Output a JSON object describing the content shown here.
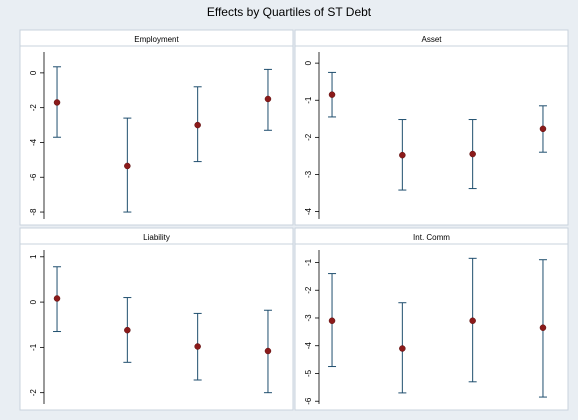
{
  "title": "Effects by Quartiles of ST Debt",
  "colors": {
    "outer_bg": "#e9eef3",
    "panel_bg": "#ffffff",
    "strip_bg": "#ffffff",
    "border": "#c9d3dc",
    "axis": "#000000",
    "errorbar": "#1f4e6e",
    "point": "#8b1a1a"
  },
  "chart_data": [
    {
      "type": "scatter",
      "title": "Employment",
      "x": [
        1,
        2,
        3,
        4
      ],
      "y": [
        -1.7,
        -5.35,
        -3.0,
        -1.5
      ],
      "ci_low": [
        -3.7,
        -8.0,
        -5.1,
        -3.3
      ],
      "ci_high": [
        0.35,
        -2.6,
        -0.8,
        0.2
      ],
      "yticks": [
        0,
        -2,
        -4,
        -6,
        -8
      ],
      "ytick_labels": [
        "0",
        "-2",
        "-4",
        "-6",
        "-8"
      ],
      "ylim": [
        -8.4,
        1.2
      ],
      "grid": false
    },
    {
      "type": "scatter",
      "title": "Asset",
      "x": [
        1,
        2,
        3,
        4
      ],
      "y": [
        -0.85,
        -2.48,
        -2.45,
        -1.77
      ],
      "ci_low": [
        -1.45,
        -3.42,
        -3.38,
        -2.4
      ],
      "ci_high": [
        -0.25,
        -1.52,
        -1.52,
        -1.15
      ],
      "yticks": [
        0,
        -1,
        -2,
        -3,
        -4
      ],
      "ytick_labels": [
        "0",
        "-1",
        "-2",
        "-3",
        "-4"
      ],
      "ylim": [
        -4.2,
        0.3
      ],
      "grid": false
    },
    {
      "type": "scatter",
      "title": "Liability",
      "x": [
        1,
        2,
        3,
        4
      ],
      "y": [
        0.08,
        -0.62,
        -0.98,
        -1.08
      ],
      "ci_low": [
        -0.65,
        -1.33,
        -1.72,
        -2.0
      ],
      "ci_high": [
        0.78,
        0.1,
        -0.25,
        -0.18
      ],
      "yticks": [
        1,
        0,
        -1,
        -2
      ],
      "ytick_labels": [
        "1",
        "0",
        "-1",
        "-2"
      ],
      "ylim": [
        -2.25,
        1.15
      ],
      "grid": false
    },
    {
      "type": "scatter",
      "title": "Int. Comm",
      "x": [
        1,
        2,
        3,
        4
      ],
      "y": [
        -3.1,
        -4.1,
        -3.1,
        -3.35
      ],
      "ci_low": [
        -4.75,
        -5.7,
        -5.3,
        -5.85
      ],
      "ci_high": [
        -1.4,
        -2.45,
        -0.85,
        -0.9
      ],
      "yticks": [
        -1,
        -2,
        -3,
        -4,
        -5,
        -6
      ],
      "ytick_labels": [
        "-1",
        "-2",
        "-3",
        "-4",
        "-5",
        "-6"
      ],
      "ylim": [
        -6.1,
        -0.55
      ],
      "grid": false
    }
  ]
}
